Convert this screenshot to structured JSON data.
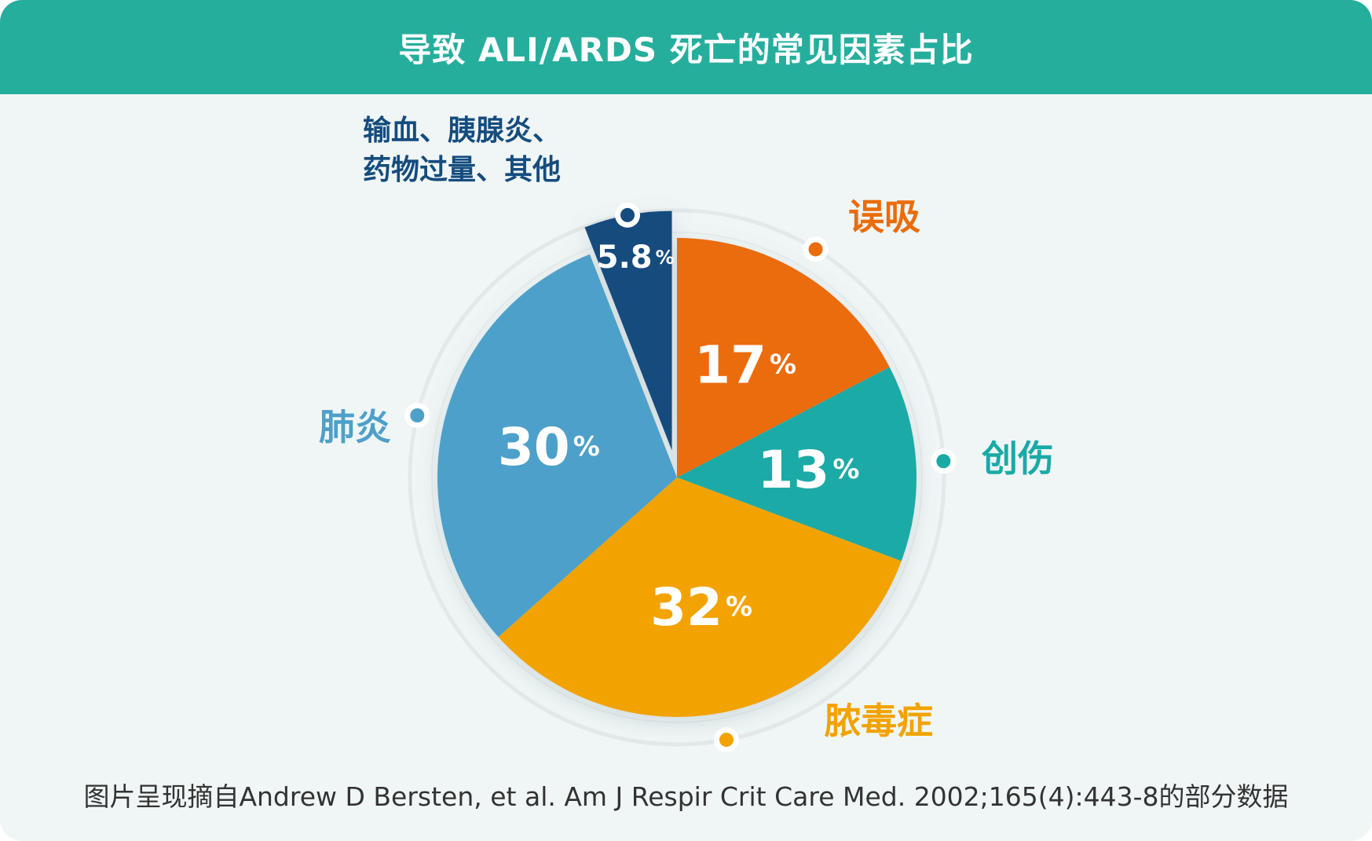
{
  "title": "导致 ALI/ARDS 死亡的常见因素占比",
  "footer": "图片呈现摘自Andrew D Bersten, et al. Am J Respir Crit Care Med. 2002;165(4):443-8的部分数据",
  "colors": {
    "header": "#26ae9d",
    "background": "#f0f6f6",
    "aspiration": "#ea6c0b",
    "trauma": "#1aaaa6",
    "sepsis": "#f2a300",
    "pneumonia": "#4ea0c9",
    "other": "#154c7e"
  },
  "chart_data": {
    "type": "pie",
    "title": "导致 ALI/ARDS 死亡的常见因素占比",
    "unit": "%",
    "slices": [
      {
        "label": "误吸",
        "value": 17,
        "display": "17",
        "color": "#ea6c0b"
      },
      {
        "label": "创伤",
        "value": 13,
        "display": "13",
        "color": "#1aaaa6"
      },
      {
        "label": "脓毒症",
        "value": 32,
        "display": "32",
        "color": "#f2a300"
      },
      {
        "label": "肺炎",
        "value": 30,
        "display": "30",
        "color": "#4ea0c9"
      },
      {
        "label": "输血、胰腺炎、药物过量、其他",
        "label_lines": [
          "输血、胰腺炎、",
          "药物过量、其他"
        ],
        "value": 5.8,
        "display": "5.8",
        "color": "#154c7e"
      }
    ]
  }
}
